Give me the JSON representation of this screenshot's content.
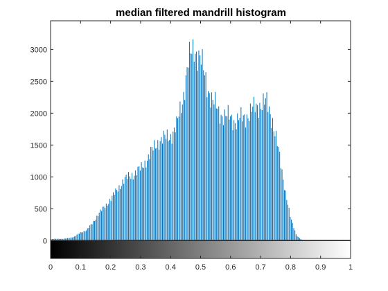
{
  "chart_data": {
    "type": "bar",
    "title": "median filtered mandrill histogram",
    "xlabel": "",
    "ylabel": "",
    "xlim": [
      0,
      1
    ],
    "ylim": [
      -280,
      3450
    ],
    "x_ticks": [
      "0",
      "0.1",
      "0.2",
      "0.3",
      "0.4",
      "0.5",
      "0.6",
      "0.7",
      "0.8",
      "0.9",
      "1"
    ],
    "y_ticks": [
      "0",
      "500",
      "1000",
      "1500",
      "2000",
      "2500",
      "3000"
    ],
    "grid": false,
    "colorbar": {
      "type": "grayscale",
      "from": "#000000",
      "to": "#ffffff",
      "range": [
        0,
        1
      ]
    },
    "bar_color": "#0072bd",
    "series": [
      {
        "values": [
          {
            "x": 0.0,
            "y": 20
          },
          {
            "x": 0.02,
            "y": 30
          },
          {
            "x": 0.04,
            "y": 25
          },
          {
            "x": 0.06,
            "y": 40
          },
          {
            "x": 0.08,
            "y": 60
          },
          {
            "x": 0.1,
            "y": 130
          },
          {
            "x": 0.12,
            "y": 160
          },
          {
            "x": 0.14,
            "y": 280
          },
          {
            "x": 0.16,
            "y": 420
          },
          {
            "x": 0.18,
            "y": 530
          },
          {
            "x": 0.2,
            "y": 650
          },
          {
            "x": 0.22,
            "y": 780
          },
          {
            "x": 0.24,
            "y": 930
          },
          {
            "x": 0.26,
            "y": 1000
          },
          {
            "x": 0.28,
            "y": 1060
          },
          {
            "x": 0.3,
            "y": 1120
          },
          {
            "x": 0.32,
            "y": 1270
          },
          {
            "x": 0.34,
            "y": 1420
          },
          {
            "x": 0.36,
            "y": 1570
          },
          {
            "x": 0.38,
            "y": 1600
          },
          {
            "x": 0.4,
            "y": 1650
          },
          {
            "x": 0.42,
            "y": 1790
          },
          {
            "x": 0.44,
            "y": 2220
          },
          {
            "x": 0.46,
            "y": 2820
          },
          {
            "x": 0.48,
            "y": 3030
          },
          {
            "x": 0.5,
            "y": 2850
          },
          {
            "x": 0.52,
            "y": 2460
          },
          {
            "x": 0.54,
            "y": 2200
          },
          {
            "x": 0.56,
            "y": 2020
          },
          {
            "x": 0.58,
            "y": 1960
          },
          {
            "x": 0.6,
            "y": 1920
          },
          {
            "x": 0.62,
            "y": 1880
          },
          {
            "x": 0.64,
            "y": 1920
          },
          {
            "x": 0.66,
            "y": 1990
          },
          {
            "x": 0.68,
            "y": 2080
          },
          {
            "x": 0.7,
            "y": 2150
          },
          {
            "x": 0.72,
            "y": 2160
          },
          {
            "x": 0.74,
            "y": 1900
          },
          {
            "x": 0.76,
            "y": 1400
          },
          {
            "x": 0.78,
            "y": 850
          },
          {
            "x": 0.8,
            "y": 350
          },
          {
            "x": 0.82,
            "y": 80
          },
          {
            "x": 0.84,
            "y": 0
          }
        ]
      }
    ]
  }
}
